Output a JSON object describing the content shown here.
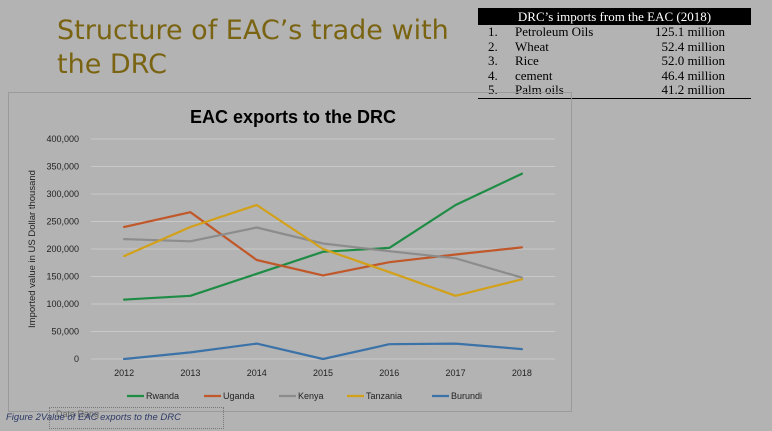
{
  "slide": {
    "title": "Structure of EAC’s trade with the DRC"
  },
  "imports_table": {
    "header": "DRC’s imports from the EAC (2018)",
    "rows": [
      {
        "num": "1.",
        "item": "Petroleum Oils",
        "value": "125.1 million"
      },
      {
        "num": "2.",
        "item": "Wheat",
        "value": "52.4 million"
      },
      {
        "num": "3.",
        "item": "Rice",
        "value": "52.0 million"
      },
      {
        "num": "4.",
        "item": "cement",
        "value": "46.4 million"
      },
      {
        "num": "5.",
        "item": "Palm oils",
        "value": "41.2 million"
      }
    ]
  },
  "caption": {
    "text": "Figure 2Value of EAC exports to the DRC",
    "overlay": "Date Rang"
  },
  "chart_data": {
    "type": "line",
    "title": "EAC exports to the DRC",
    "xlabel": "",
    "ylabel": "Imported value in US Dollar thousand",
    "x": [
      "2012",
      "2013",
      "2014",
      "2015",
      "2016",
      "2017",
      "2018"
    ],
    "ylim": [
      0,
      400000
    ],
    "yticks": [
      0,
      50000,
      100000,
      150000,
      200000,
      250000,
      300000,
      350000,
      400000
    ],
    "ytick_labels": [
      "0",
      "50,000",
      "100,000",
      "150,000",
      "200,000",
      "250,000",
      "300,000",
      "350,000",
      "400,000"
    ],
    "grid": true,
    "legend": "bottom",
    "series": [
      {
        "name": "Rwanda",
        "color": "#1e8c45",
        "values": [
          108000,
          115000,
          155000,
          195000,
          202000,
          280000,
          337000
        ]
      },
      {
        "name": "Uganda",
        "color": "#c0582a",
        "values": [
          240000,
          267000,
          180000,
          152000,
          176000,
          190000,
          203000
        ]
      },
      {
        "name": "Kenya",
        "color": "#8c8c8c",
        "values": [
          218000,
          214000,
          239000,
          210000,
          196000,
          183000,
          148000
        ]
      },
      {
        "name": "Tanzania",
        "color": "#d3a019",
        "values": [
          187000,
          240000,
          280000,
          200000,
          158000,
          115000,
          145000
        ]
      },
      {
        "name": "Burundi",
        "color": "#3b72a8",
        "values": [
          0,
          12000,
          28000,
          0,
          27000,
          28000,
          18000
        ]
      }
    ]
  }
}
